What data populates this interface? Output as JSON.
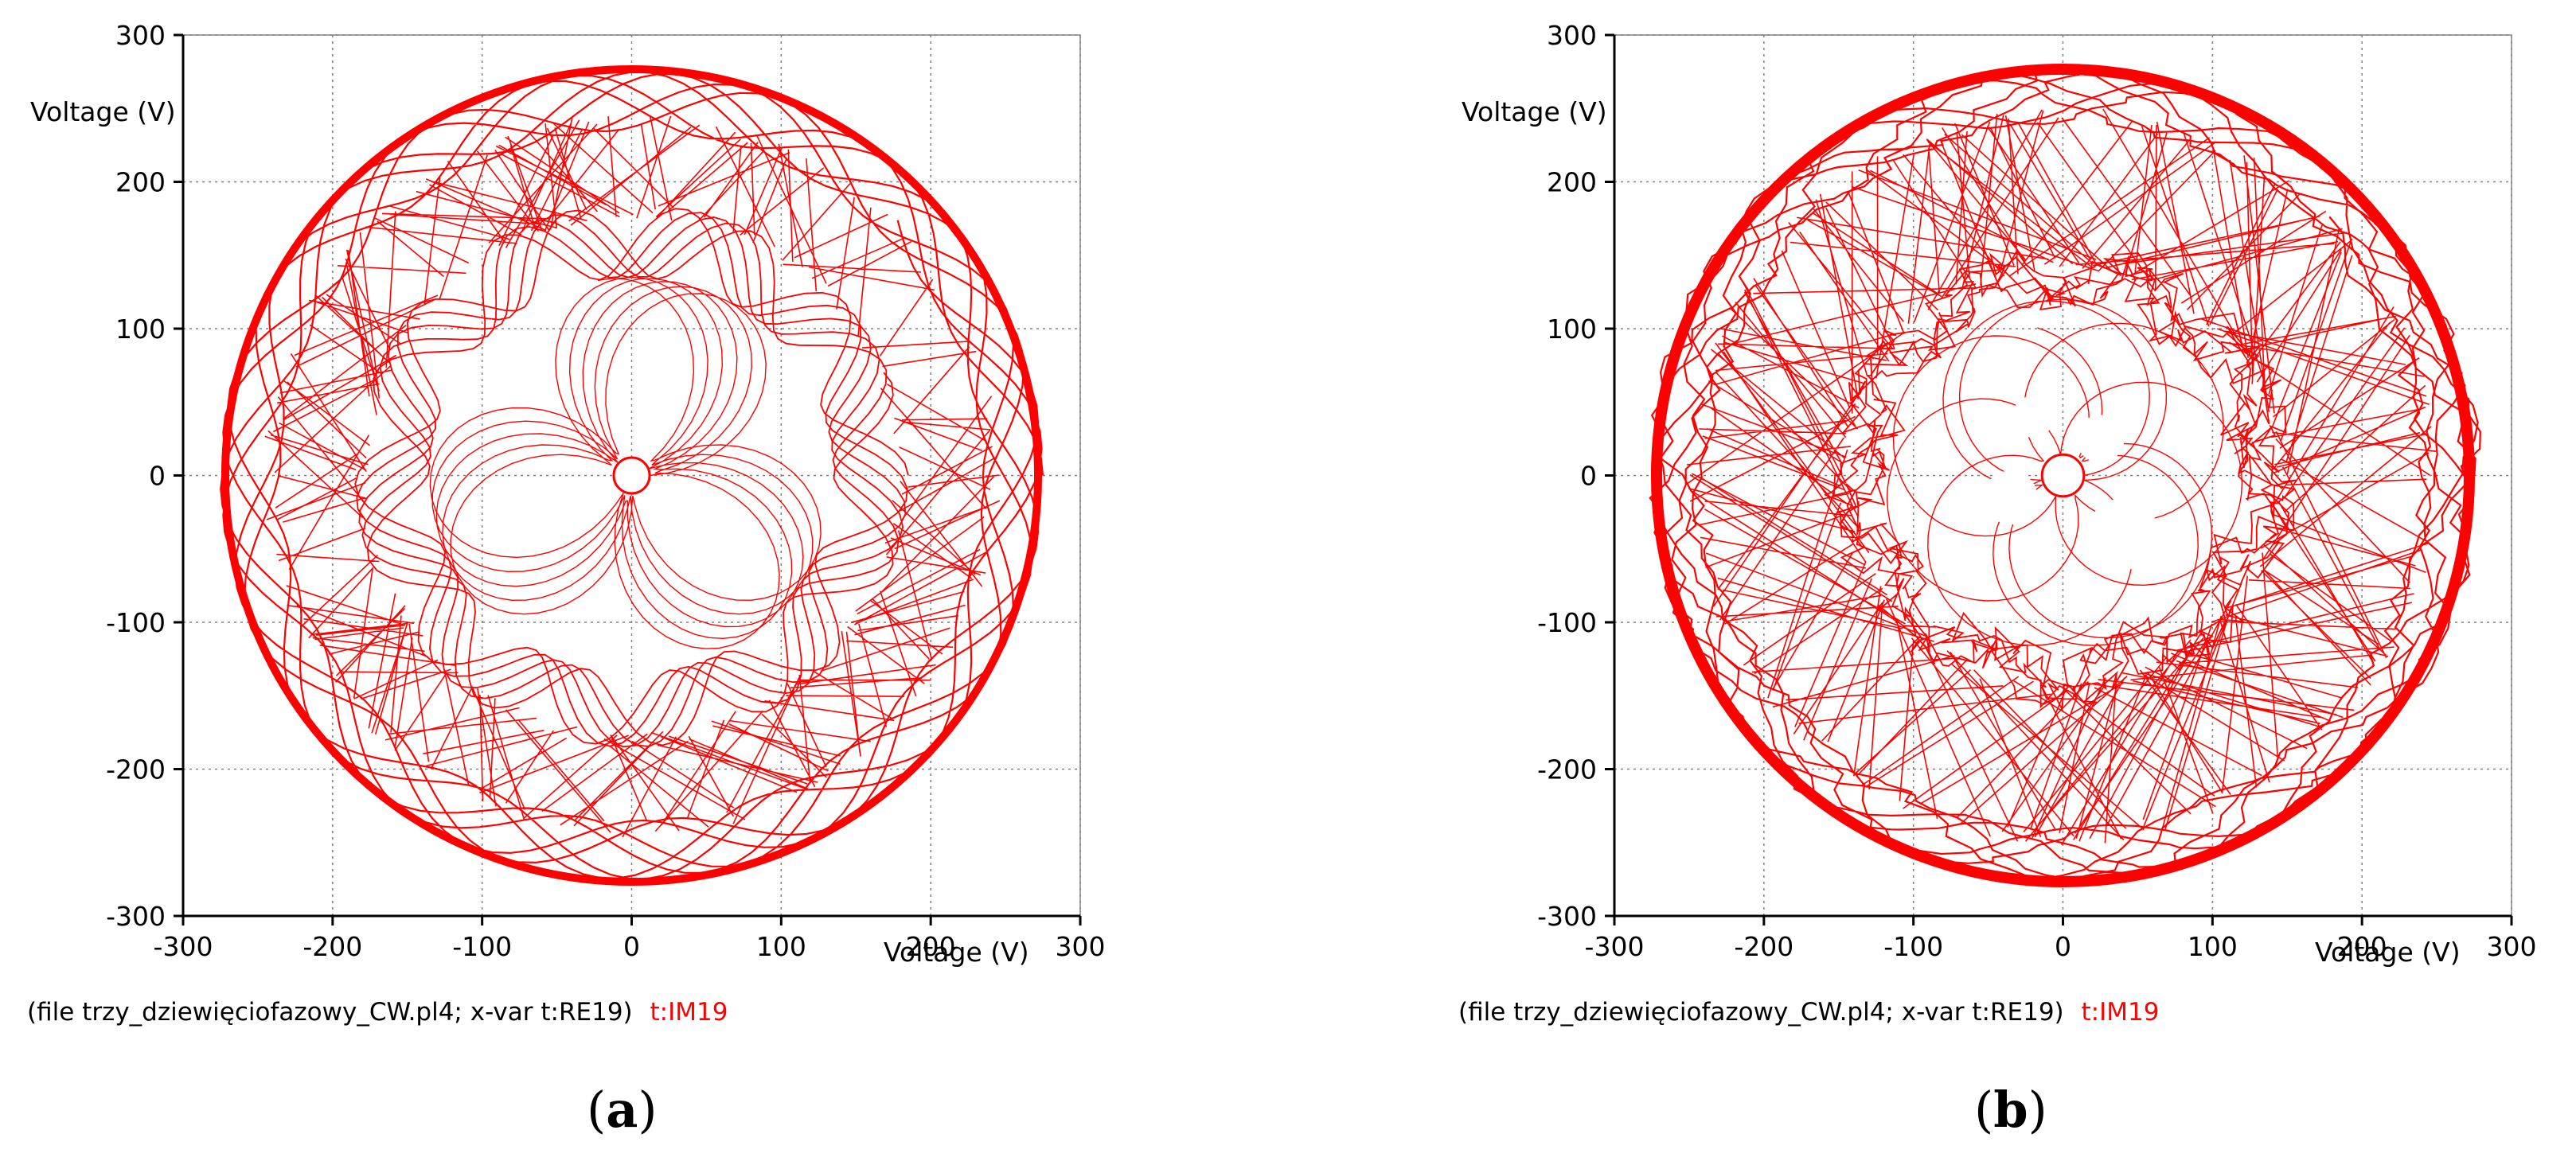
{
  "chart_data": [
    {
      "type": "line",
      "panel": "a",
      "panel_label": "a",
      "xlabel": "Voltage (V)",
      "ylabel": "Voltage (V)",
      "xlim": [
        -300,
        300
      ],
      "ylim": [
        -300,
        300
      ],
      "x_ticks": [
        -300,
        -200,
        -100,
        0,
        100,
        200,
        300
      ],
      "y_ticks": [
        -300,
        -200,
        -100,
        0,
        100,
        200,
        300
      ],
      "grid": true,
      "series": [
        {
          "color": "#ff0000",
          "shape": "rosette trajectory: outer band radius 235-275, inner band radius 135-185, star-shaped core, small hole radius ~12 at origin",
          "outer_radius": 275,
          "outer_band_inner_radius": 235,
          "inner_band_outer_radius": 185,
          "inner_band_inner_radius": 135,
          "center_hole_radius": 12
        }
      ],
      "footer": {
        "file_text": "(file trzy_dziewięciofazowy_CW.pl4; x-var t:RE19)",
        "series_text": "t:IM19"
      }
    },
    {
      "type": "line",
      "panel": "b",
      "panel_label": "b",
      "xlabel": "Voltage (V)",
      "ylabel": "Voltage (V)",
      "xlim": [
        -300,
        300
      ],
      "ylim": [
        -300,
        300
      ],
      "x_ticks": [
        -300,
        -200,
        -100,
        0,
        100,
        200,
        300
      ],
      "y_ticks": [
        -300,
        -200,
        -100,
        0,
        100,
        200,
        300
      ],
      "grid": true,
      "series": [
        {
          "color": "#ff0000",
          "shape": "distorted rosette trajectory: outer band radius 240-275, irregular inner ring radius 120-150, asymmetric core with holes",
          "outer_radius": 275,
          "outer_band_inner_radius": 240,
          "inner_band_outer_radius": 150,
          "inner_band_inner_radius": 120,
          "center_hole_radius": 14
        }
      ],
      "footer": {
        "file_text": "(file trzy_dziewięciofazowy_CW.pl4; x-var t:RE19)",
        "series_text": "t:IM19"
      }
    }
  ]
}
